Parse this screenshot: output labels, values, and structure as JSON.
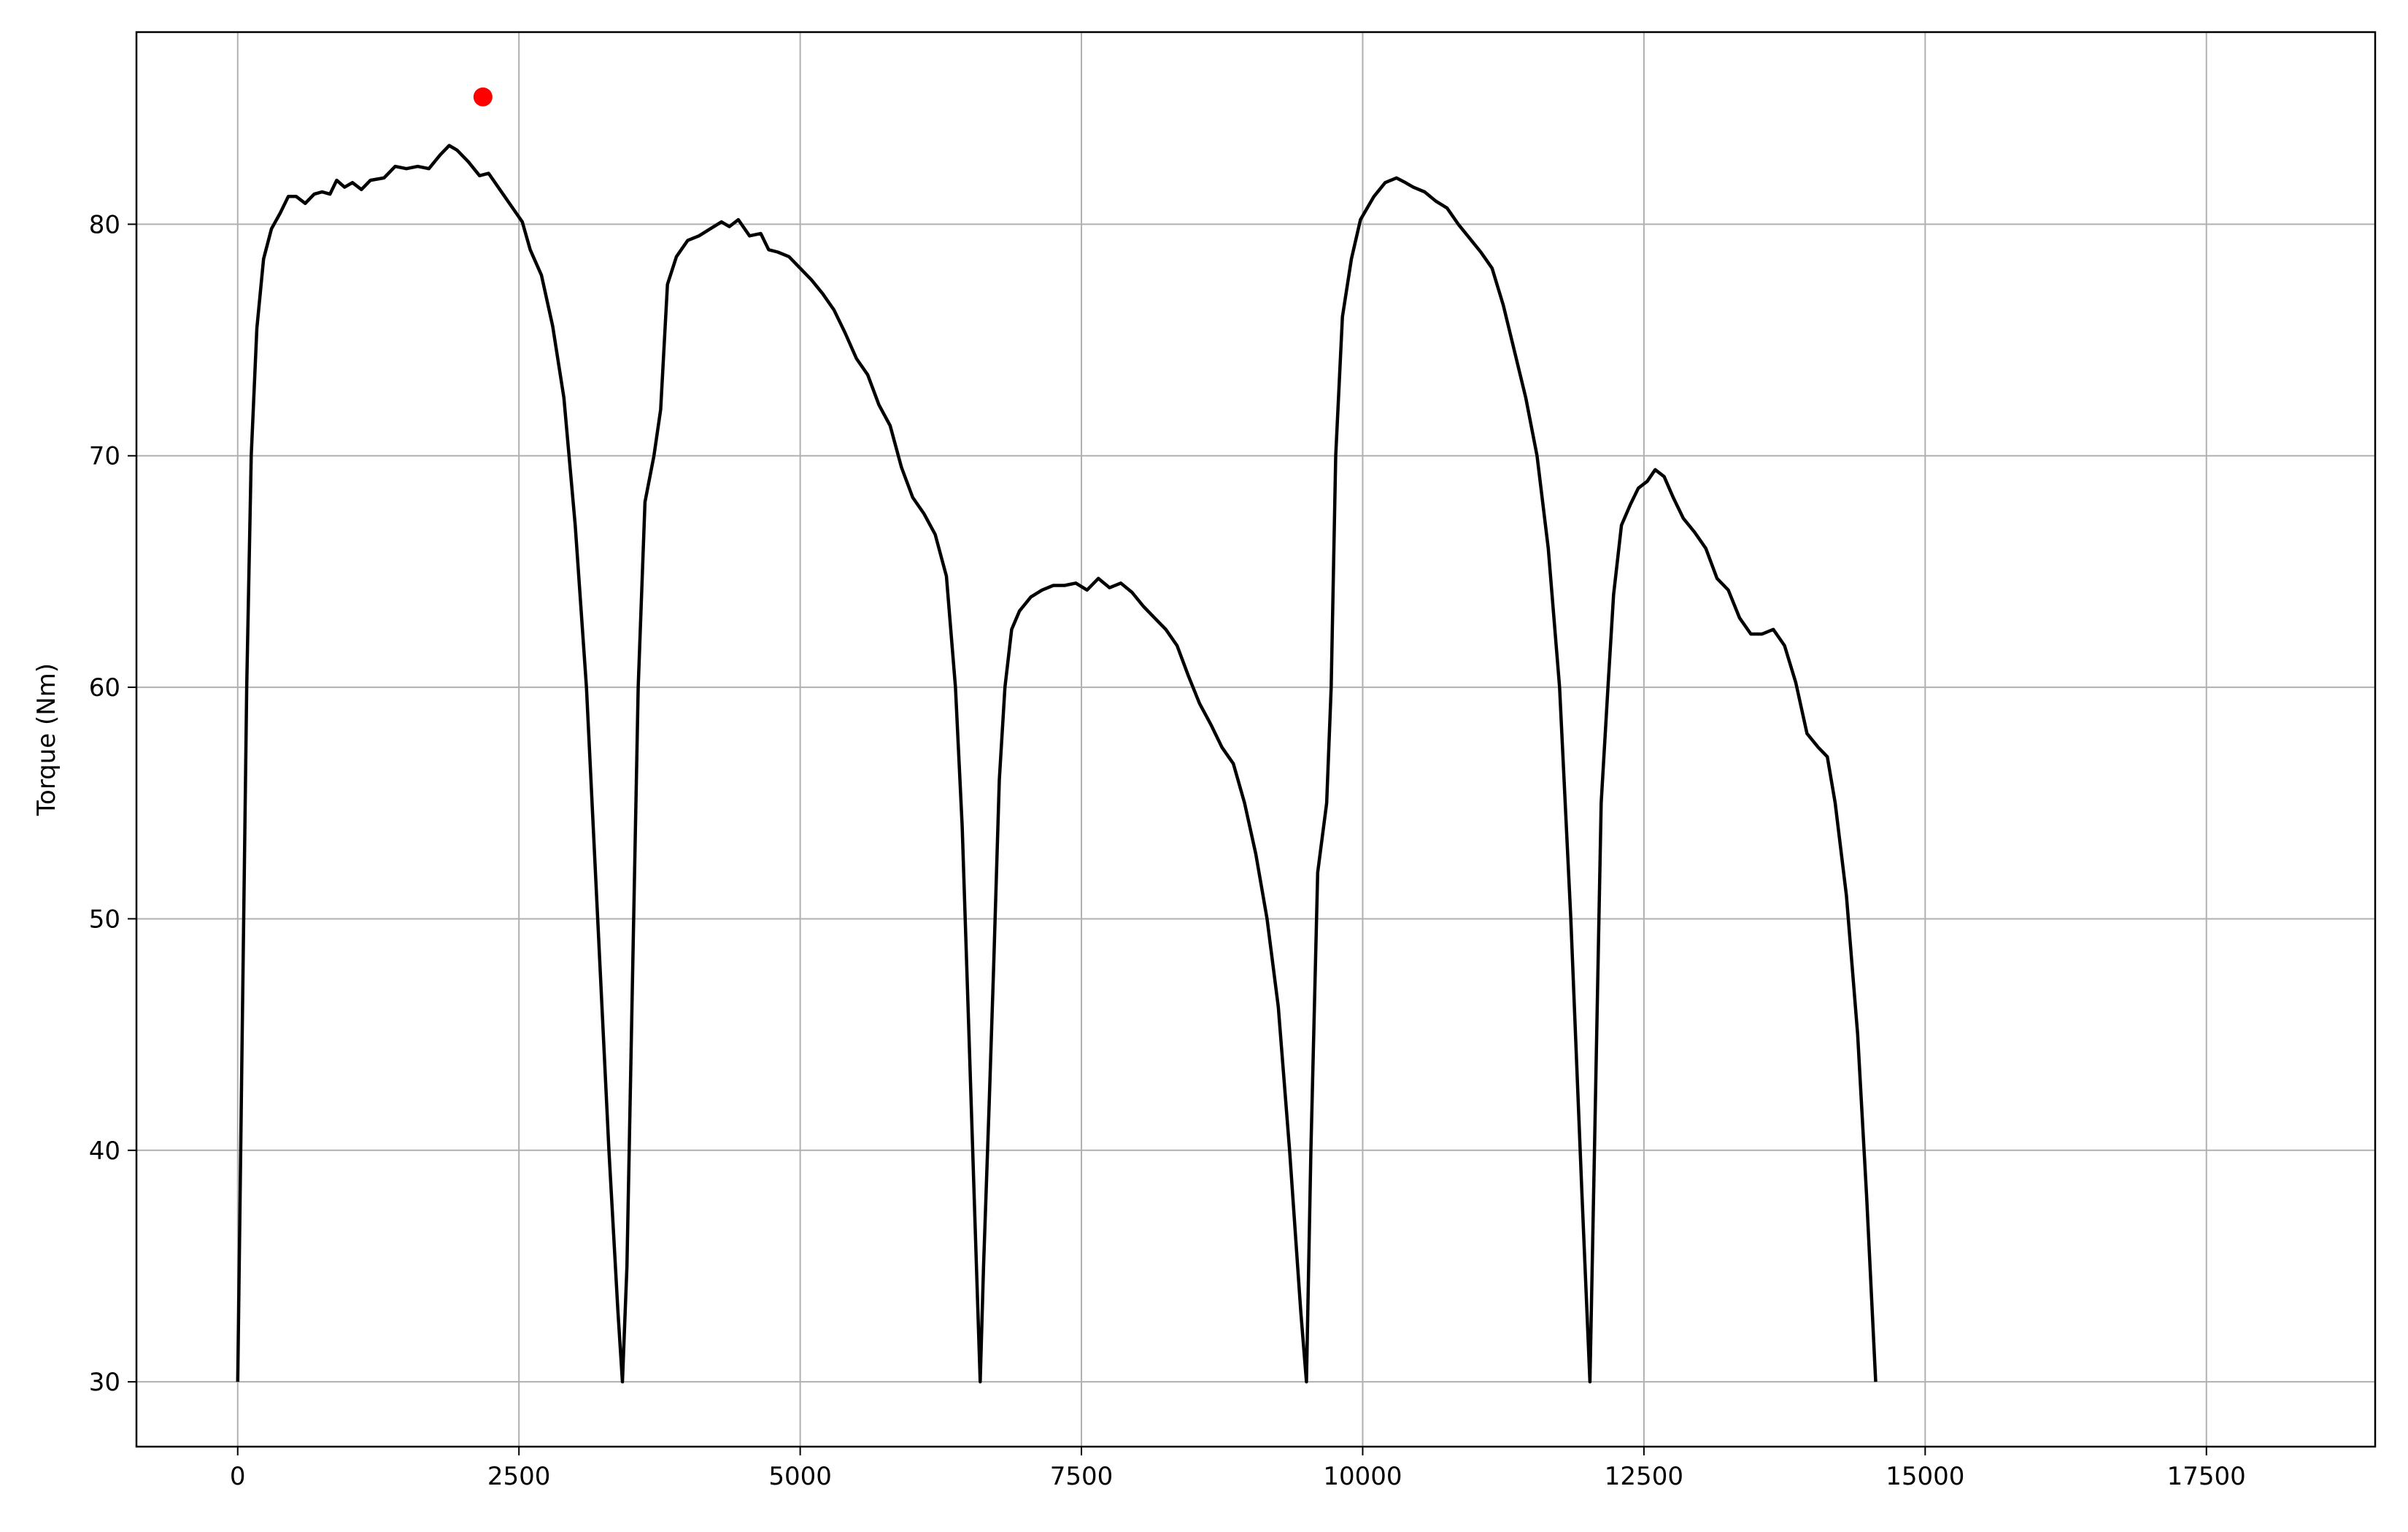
{
  "chart_data": {
    "type": "line",
    "title": "",
    "xlabel": "",
    "ylabel": "Torque (Nm)",
    "xlim": [
      -900,
      19000
    ],
    "ylim": [
      27.2,
      88.3
    ],
    "xticks": [
      0,
      2500,
      5000,
      7500,
      10000,
      12500,
      15000,
      17500
    ],
    "yticks": [
      30,
      40,
      50,
      60,
      70,
      80
    ],
    "grid": true,
    "colors": {
      "line": "#000000",
      "marker": "#ff0000",
      "grid": "#b0b0b0"
    },
    "series": [
      {
        "color": "#000000",
        "points": [
          [
            0,
            30
          ],
          [
            40,
            45
          ],
          [
            80,
            60
          ],
          [
            120,
            70
          ],
          [
            170,
            75.5
          ],
          [
            230,
            78.5
          ],
          [
            300,
            79.8
          ],
          [
            380,
            80.5
          ],
          [
            450,
            81.2
          ],
          [
            520,
            81.2
          ],
          [
            600,
            80.9
          ],
          [
            680,
            81.3
          ],
          [
            750,
            81.4
          ],
          [
            820,
            81.3
          ],
          [
            880,
            81.9
          ],
          [
            950,
            81.6
          ],
          [
            1020,
            81.8
          ],
          [
            1100,
            81.5
          ],
          [
            1180,
            81.9
          ],
          [
            1300,
            82.0
          ],
          [
            1400,
            82.5
          ],
          [
            1500,
            82.4
          ],
          [
            1600,
            82.5
          ],
          [
            1700,
            82.4
          ],
          [
            1800,
            83.0
          ],
          [
            1880,
            83.4
          ],
          [
            1950,
            83.2
          ],
          [
            2050,
            82.7
          ],
          [
            2150,
            82.1
          ],
          [
            2230,
            82.2
          ],
          [
            2330,
            81.5
          ],
          [
            2430,
            80.8
          ],
          [
            2530,
            80.1
          ],
          [
            2600,
            78.9
          ],
          [
            2700,
            77.8
          ],
          [
            2800,
            75.6
          ],
          [
            2900,
            72.5
          ],
          [
            3000,
            67
          ],
          [
            3100,
            60
          ],
          [
            3200,
            50
          ],
          [
            3300,
            40
          ],
          [
            3380,
            33
          ],
          [
            3420,
            30
          ],
          [
            3460,
            35
          ],
          [
            3520,
            50
          ],
          [
            3560,
            60
          ],
          [
            3620,
            68
          ],
          [
            3700,
            70
          ],
          [
            3760,
            72
          ],
          [
            3820,
            77.4
          ],
          [
            3900,
            78.6
          ],
          [
            4000,
            79.3
          ],
          [
            4100,
            79.5
          ],
          [
            4200,
            79.8
          ],
          [
            4300,
            80.1
          ],
          [
            4370,
            79.9
          ],
          [
            4450,
            80.2
          ],
          [
            4550,
            79.5
          ],
          [
            4650,
            79.6
          ],
          [
            4720,
            78.9
          ],
          [
            4800,
            78.8
          ],
          [
            4900,
            78.6
          ],
          [
            5000,
            78.1
          ],
          [
            5100,
            77.6
          ],
          [
            5200,
            77.0
          ],
          [
            5300,
            76.3
          ],
          [
            5400,
            75.3
          ],
          [
            5500,
            74.2
          ],
          [
            5600,
            73.5
          ],
          [
            5700,
            72.2
          ],
          [
            5800,
            71.3
          ],
          [
            5900,
            69.5
          ],
          [
            6000,
            68.2
          ],
          [
            6100,
            67.5
          ],
          [
            6200,
            66.6
          ],
          [
            6300,
            64.8
          ],
          [
            6380,
            60
          ],
          [
            6440,
            54
          ],
          [
            6500,
            45
          ],
          [
            6560,
            36
          ],
          [
            6600,
            30
          ],
          [
            6630,
            35
          ],
          [
            6680,
            42
          ],
          [
            6720,
            48
          ],
          [
            6770,
            56
          ],
          [
            6820,
            60
          ],
          [
            6880,
            62.5
          ],
          [
            6950,
            63.3
          ],
          [
            7050,
            63.9
          ],
          [
            7150,
            64.2
          ],
          [
            7250,
            64.4
          ],
          [
            7350,
            64.4
          ],
          [
            7450,
            64.5
          ],
          [
            7550,
            64.2
          ],
          [
            7650,
            64.7
          ],
          [
            7750,
            64.3
          ],
          [
            7850,
            64.5
          ],
          [
            7950,
            64.1
          ],
          [
            8050,
            63.5
          ],
          [
            8150,
            63.0
          ],
          [
            8250,
            62.5
          ],
          [
            8350,
            61.8
          ],
          [
            8450,
            60.5
          ],
          [
            8550,
            59.3
          ],
          [
            8650,
            58.4
          ],
          [
            8750,
            57.4
          ],
          [
            8850,
            56.7
          ],
          [
            8950,
            55.0
          ],
          [
            9050,
            52.8
          ],
          [
            9150,
            50.0
          ],
          [
            9250,
            46.2
          ],
          [
            9350,
            40
          ],
          [
            9450,
            33
          ],
          [
            9500,
            30
          ],
          [
            9540,
            40
          ],
          [
            9600,
            52
          ],
          [
            9680,
            55
          ],
          [
            9720,
            60
          ],
          [
            9760,
            70
          ],
          [
            9820,
            76
          ],
          [
            9900,
            78.5
          ],
          [
            9980,
            80.2
          ],
          [
            10100,
            81.2
          ],
          [
            10200,
            81.8
          ],
          [
            10300,
            82.0
          ],
          [
            10380,
            81.8
          ],
          [
            10450,
            81.6
          ],
          [
            10550,
            81.4
          ],
          [
            10650,
            81.0
          ],
          [
            10750,
            80.7
          ],
          [
            10850,
            80.0
          ],
          [
            10950,
            79.4
          ],
          [
            11050,
            78.8
          ],
          [
            11150,
            78.1
          ],
          [
            11250,
            76.5
          ],
          [
            11350,
            74.5
          ],
          [
            11450,
            72.5
          ],
          [
            11550,
            70
          ],
          [
            11650,
            66
          ],
          [
            11750,
            60
          ],
          [
            11850,
            50
          ],
          [
            11950,
            38
          ],
          [
            12020,
            30
          ],
          [
            12060,
            40
          ],
          [
            12120,
            55
          ],
          [
            12180,
            60
          ],
          [
            12230,
            64
          ],
          [
            12300,
            67
          ],
          [
            12380,
            67.9
          ],
          [
            12450,
            68.6
          ],
          [
            12530,
            68.9
          ],
          [
            12600,
            69.4
          ],
          [
            12680,
            69.1
          ],
          [
            12760,
            68.2
          ],
          [
            12850,
            67.3
          ],
          [
            12950,
            66.7
          ],
          [
            13050,
            66.0
          ],
          [
            13150,
            64.7
          ],
          [
            13250,
            64.2
          ],
          [
            13350,
            63.0
          ],
          [
            13450,
            62.3
          ],
          [
            13550,
            62.3
          ],
          [
            13650,
            62.5
          ],
          [
            13750,
            61.8
          ],
          [
            13850,
            60.2
          ],
          [
            13950,
            58.0
          ],
          [
            14050,
            57.4
          ],
          [
            14130,
            57.0
          ],
          [
            14200,
            55
          ],
          [
            14300,
            51
          ],
          [
            14400,
            45
          ],
          [
            14480,
            38
          ],
          [
            14560,
            30
          ]
        ]
      }
    ],
    "marker": {
      "x": 2180,
      "y": 85.5,
      "color": "#ff0000"
    }
  }
}
